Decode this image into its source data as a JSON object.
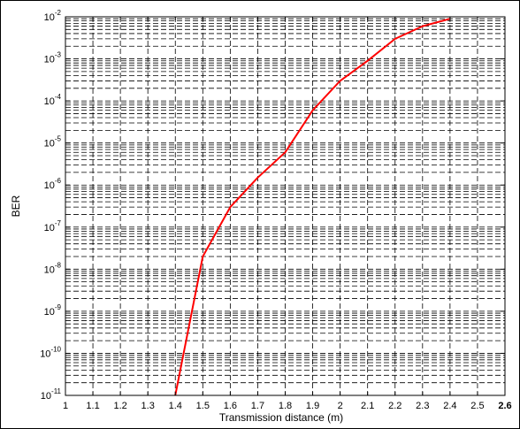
{
  "chart_data": {
    "type": "line",
    "title": "",
    "xlabel": "Transmission distance (m)",
    "ylabel": "BER",
    "x_ticks": [
      "1",
      "1.1",
      "1.2",
      "1.3",
      "1.4",
      "1.5",
      "1.6",
      "1.7",
      "1.8",
      "1.9",
      "2",
      "2.1",
      "2.2",
      "2.3",
      "2.4",
      "2.5",
      "2.6"
    ],
    "y_tick_exponents": [
      "-11",
      "-10",
      "-9",
      "-8",
      "-7",
      "-6",
      "-5",
      "-4",
      "-3",
      "-2"
    ],
    "y_tick_base": "10",
    "xlim": [
      1,
      2.6
    ],
    "ylim": [
      1e-11,
      0.01
    ],
    "yscale": "log",
    "grid": true,
    "series": [
      {
        "color": "#ff0000",
        "x": [
          1.4,
          1.5,
          1.6,
          1.7,
          1.8,
          1.9,
          2.0,
          2.1,
          2.2,
          2.3,
          2.4
        ],
        "y": [
          1e-11,
          2e-08,
          3e-07,
          1.5e-06,
          6e-06,
          6e-05,
          0.0003,
          0.0009,
          0.003,
          0.006,
          0.009
        ]
      }
    ]
  }
}
